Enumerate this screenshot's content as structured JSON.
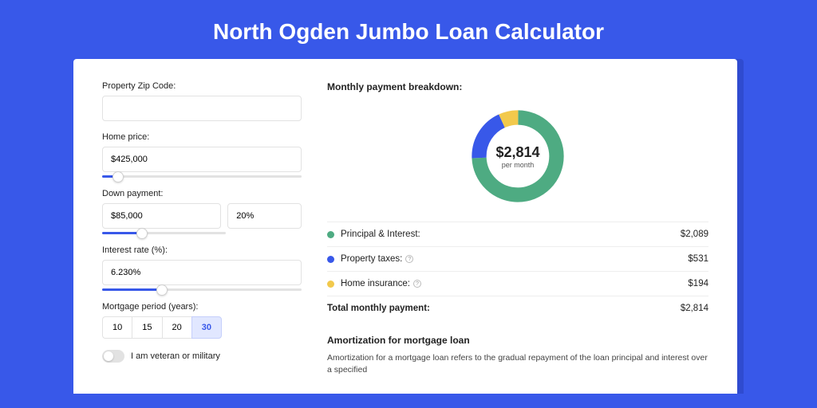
{
  "title": "North Ogden Jumbo Loan Calculator",
  "colors": {
    "page_bg": "#3858e9",
    "card_bg": "#ffffff",
    "accent": "#3858e9",
    "slider_track": "#e2e2e2",
    "border": "#e2e2e2"
  },
  "form": {
    "zip": {
      "label": "Property Zip Code:",
      "value": ""
    },
    "home_price": {
      "label": "Home price:",
      "value": "$425,000",
      "slider_pct": 8
    },
    "down_payment": {
      "label": "Down payment:",
      "amount": "$85,000",
      "percent": "20%",
      "slider_pct": 20
    },
    "interest_rate": {
      "label": "Interest rate (%):",
      "value": "6.230%",
      "slider_pct": 30
    },
    "mortgage_period": {
      "label": "Mortgage period (years):",
      "options": [
        "10",
        "15",
        "20",
        "30"
      ],
      "selected": "30"
    },
    "veteran": {
      "label": "I am veteran or military",
      "value": false
    }
  },
  "breakdown": {
    "title": "Monthly payment breakdown:",
    "center_amount": "$2,814",
    "center_sub": "per month",
    "donut": {
      "stroke_width": 18,
      "segments": [
        {
          "key": "principal_interest",
          "label": "Principal & Interest:",
          "value": "$2,089",
          "color": "#4eab82",
          "pct": 74.2
        },
        {
          "key": "property_taxes",
          "label": "Property taxes:",
          "value": "$531",
          "color": "#3858e9",
          "pct": 18.9,
          "has_info": true
        },
        {
          "key": "home_insurance",
          "label": "Home insurance:",
          "value": "$194",
          "color": "#f2c94c",
          "pct": 6.9,
          "has_info": true
        }
      ]
    },
    "total": {
      "label": "Total monthly payment:",
      "value": "$2,814"
    }
  },
  "amortization": {
    "title": "Amortization for mortgage loan",
    "text": "Amortization for a mortgage loan refers to the gradual repayment of the loan principal and interest over a specified"
  }
}
